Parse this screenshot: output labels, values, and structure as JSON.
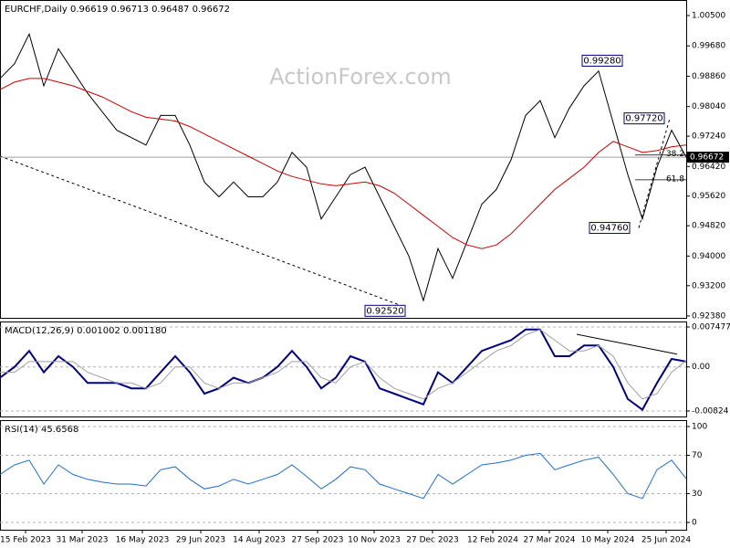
{
  "chart_data": [
    {
      "type": "line",
      "title": "EURCHF,Daily 0.96619 0.96713 0.96487 0.96672",
      "watermark": "ActionForex.com",
      "x": [
        0,
        8,
        16,
        24,
        32,
        40,
        48,
        56,
        64,
        72,
        80,
        88,
        96,
        104,
        112,
        120,
        128,
        136,
        144,
        152,
        160,
        168,
        176,
        184,
        192,
        200,
        208,
        216,
        224,
        232,
        240,
        248,
        256,
        264,
        272,
        280,
        288,
        296,
        304,
        312,
        320,
        328,
        336,
        344,
        352,
        360,
        368,
        376
      ],
      "xlim": [
        0,
        376
      ],
      "xticks": [
        {
          "value": 14,
          "label": "15 Feb 2023"
        },
        {
          "value": 45,
          "label": "31 Mar 2023"
        },
        {
          "value": 78,
          "label": "16 May 2023"
        },
        {
          "value": 110,
          "label": "29 Jun 2023"
        },
        {
          "value": 142,
          "label": "14 Aug 2023"
        },
        {
          "value": 174,
          "label": "27 Sep 2023"
        },
        {
          "value": 205,
          "label": "10 Nov 2023"
        },
        {
          "value": 237,
          "label": "27 Dec 2023"
        },
        {
          "value": 270,
          "label": "12 Feb 2024"
        },
        {
          "value": 301,
          "label": "27 Mar 2024"
        },
        {
          "value": 333,
          "label": "10 May 2024"
        },
        {
          "value": 365,
          "label": "25 Jun 2024"
        }
      ],
      "ylim": [
        0.9233,
        1.0092
      ],
      "yticks": [
        {
          "value": 1.005,
          "label": "1.00500"
        },
        {
          "value": 0.9968,
          "label": "0.99680"
        },
        {
          "value": 0.9886,
          "label": "0.98860"
        },
        {
          "value": 0.9804,
          "label": "0.98040"
        },
        {
          "value": 0.9724,
          "label": "0.97240"
        },
        {
          "value": 0.9642,
          "label": "0.96420"
        },
        {
          "value": 0.9562,
          "label": "0.95620"
        },
        {
          "value": 0.9482,
          "label": "0.94820"
        },
        {
          "value": 0.94,
          "label": "0.94000"
        },
        {
          "value": 0.932,
          "label": "0.93200"
        },
        {
          "value": 0.9238,
          "label": "0.92380"
        }
      ],
      "grid": false,
      "series": [
        {
          "color": "#000000",
          "values": [
            0.988,
            0.992,
            1.0,
            0.986,
            0.996,
            0.99,
            0.984,
            0.979,
            0.974,
            0.972,
            0.97,
            0.978,
            0.978,
            0.97,
            0.96,
            0.956,
            0.96,
            0.956,
            0.956,
            0.96,
            0.968,
            0.964,
            0.95,
            0.956,
            0.962,
            0.964,
            0.956,
            0.948,
            0.94,
            0.928,
            0.942,
            0.934,
            0.944,
            0.954,
            0.958,
            0.966,
            0.978,
            0.982,
            0.972,
            0.98,
            0.986,
            0.99,
            0.976,
            0.962,
            0.95,
            0.964,
            0.974,
            0.96672
          ]
        },
        {
          "color": "#d00000",
          "values": [
            0.985,
            0.987,
            0.988,
            0.988,
            0.987,
            0.986,
            0.9845,
            0.983,
            0.981,
            0.979,
            0.9775,
            0.977,
            0.9765,
            0.975,
            0.973,
            0.971,
            0.969,
            0.967,
            0.965,
            0.963,
            0.9615,
            0.9605,
            0.9595,
            0.959,
            0.9595,
            0.96,
            0.959,
            0.957,
            0.954,
            0.951,
            0.948,
            0.945,
            0.943,
            0.942,
            0.943,
            0.946,
            0.95,
            0.954,
            0.958,
            0.961,
            0.964,
            0.968,
            0.971,
            0.9695,
            0.968,
            0.9685,
            0.9695,
            0.97
          ]
        }
      ],
      "last_price": 0.96672,
      "annotations": [
        {
          "text": "0.99280",
          "x": 330,
          "y": 0.9928
        },
        {
          "text": "0.97720",
          "x": 353,
          "y": 0.9772
        },
        {
          "text": "0.94760",
          "x": 334,
          "y": 0.9476
        },
        {
          "text": "0.92520",
          "x": 211,
          "y": 0.9252
        }
      ],
      "fib": [
        {
          "text": "38.2",
          "x": [
            348,
            376
          ],
          "y": 0.9673
        },
        {
          "text": "61.8",
          "x": [
            348,
            376
          ],
          "y": 0.9606
        }
      ],
      "trendlines": [
        {
          "x": [
            0,
            222
          ],
          "y": [
            0.967,
            0.9262
          ]
        },
        {
          "x": [
            350,
            367
          ],
          "y": [
            0.9476,
            0.9772
          ]
        }
      ]
    },
    {
      "type": "line",
      "title": "MACD(12,26,9) 0.001002 0.001180",
      "x": [
        0,
        8,
        16,
        24,
        32,
        40,
        48,
        56,
        64,
        72,
        80,
        88,
        96,
        104,
        112,
        120,
        128,
        136,
        144,
        152,
        160,
        168,
        176,
        184,
        192,
        200,
        208,
        216,
        224,
        232,
        240,
        248,
        256,
        264,
        272,
        280,
        288,
        296,
        304,
        312,
        320,
        328,
        336,
        344,
        352,
        360,
        368,
        376
      ],
      "xlim": [
        0,
        376
      ],
      "ylim": [
        -0.00927,
        0.0085
      ],
      "yticks": [
        {
          "value": 0.007477,
          "label": "0.007477"
        },
        {
          "value": 0,
          "label": "0.00"
        },
        -0.00824
      ],
      "grid": true,
      "series": [
        {
          "color": "#000080",
          "values": [
            -0.002,
            0.0,
            0.003,
            -0.001,
            0.002,
            0.0,
            -0.003,
            -0.003,
            -0.003,
            -0.004,
            -0.004,
            -0.001,
            0.002,
            -0.001,
            -0.005,
            -0.004,
            -0.002,
            -0.003,
            -0.002,
            0.0,
            0.003,
            0.0,
            -0.004,
            -0.002,
            0.002,
            0.001,
            -0.004,
            -0.005,
            -0.006,
            -0.007,
            -0.001,
            -0.003,
            0.0,
            0.003,
            0.004,
            0.005,
            0.007,
            0.007,
            0.002,
            0.002,
            0.004,
            0.004,
            0.0,
            -0.006,
            -0.008,
            -0.003,
            0.0015,
            0.001002
          ]
        },
        {
          "color": "#a0a0a0",
          "values": [
            -0.001,
            -0.001,
            0.001,
            0.001,
            0.001,
            0.001,
            -0.001,
            -0.002,
            -0.003,
            -0.003,
            -0.004,
            -0.003,
            0.0,
            0.0,
            -0.003,
            -0.004,
            -0.003,
            -0.003,
            -0.002,
            -0.001,
            0.001,
            0.001,
            -0.002,
            -0.003,
            0.0,
            0.001,
            -0.002,
            -0.004,
            -0.005,
            -0.006,
            -0.004,
            -0.003,
            -0.001,
            0.001,
            0.003,
            0.004,
            0.006,
            0.007,
            0.005,
            0.003,
            0.003,
            0.004,
            0.002,
            -0.003,
            -0.006,
            -0.005,
            -0.001,
            0.00118
          ]
        }
      ],
      "trendlines": [
        {
          "x": [
            316,
            371
          ],
          "y": [
            0.0061,
            0.0024
          ]
        }
      ]
    },
    {
      "type": "line",
      "title": "RSI(14) 45.6568",
      "x": [
        0,
        8,
        16,
        24,
        32,
        40,
        48,
        56,
        64,
        72,
        80,
        88,
        96,
        104,
        112,
        120,
        128,
        136,
        144,
        152,
        160,
        168,
        176,
        184,
        192,
        200,
        208,
        216,
        224,
        232,
        240,
        248,
        256,
        264,
        272,
        280,
        288,
        296,
        304,
        312,
        320,
        328,
        336,
        344,
        352,
        360,
        368,
        376
      ],
      "xlim": [
        0,
        376
      ],
      "ylim": [
        -7.6,
        106.7
      ],
      "yticks": [
        100,
        70,
        30,
        0
      ],
      "grid": true,
      "series": [
        {
          "color": "#1e6fd0",
          "values": [
            50,
            60,
            65,
            40,
            60,
            50,
            45,
            42,
            40,
            40,
            38,
            55,
            58,
            45,
            35,
            38,
            45,
            40,
            45,
            50,
            60,
            48,
            35,
            45,
            58,
            55,
            40,
            35,
            30,
            25,
            50,
            40,
            50,
            60,
            62,
            65,
            70,
            72,
            55,
            60,
            65,
            68,
            50,
            30,
            25,
            55,
            65,
            45.6568
          ]
        }
      ]
    }
  ]
}
